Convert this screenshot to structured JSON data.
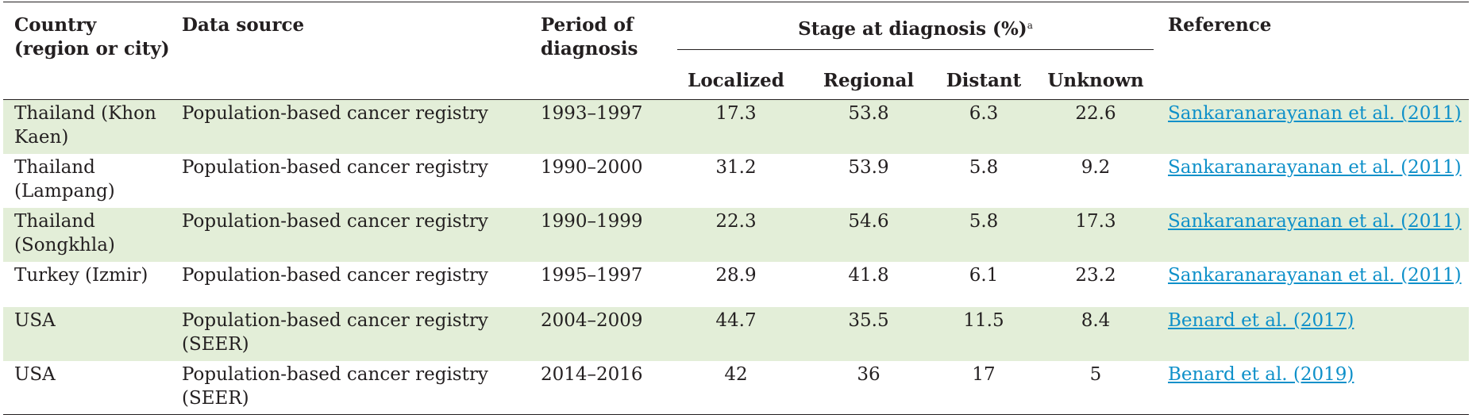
{
  "table": {
    "headers": {
      "country": "Country (region or city)",
      "source": "Data source",
      "period": "Period of diagnosis",
      "stage_group": "Stage at diagnosis (%)",
      "stage_group_note": "a",
      "localized": "Localized",
      "regional": "Regional",
      "distant": "Distant",
      "unknown": "Unknown",
      "reference": "Reference"
    },
    "rows": [
      {
        "country": "Thailand (Khon Kaen)",
        "source": "Population-based cancer registry",
        "period": "1993–1997",
        "localized": "17.3",
        "regional": "53.8",
        "distant": "6.3",
        "unknown": "22.6",
        "reference": "Sankaranarayanan et al. (2011)"
      },
      {
        "country": "Thailand (Lampang)",
        "source": "Population-based cancer registry",
        "period": "1990–2000",
        "localized": "31.2",
        "regional": "53.9",
        "distant": "5.8",
        "unknown": "9.2",
        "reference": "Sankaranarayanan et al. (2011)"
      },
      {
        "country": "Thailand (Songkhla)",
        "source": "Population-based cancer registry",
        "period": "1990–1999",
        "localized": "22.3",
        "regional": "54.6",
        "distant": "5.8",
        "unknown": "17.3",
        "reference": "Sankaranarayanan et al. (2011)"
      },
      {
        "country": "Turkey (Izmir)",
        "source": "Population-based cancer registry",
        "period": "1995–1997",
        "localized": "28.9",
        "regional": "41.8",
        "distant": "6.1",
        "unknown": "23.2",
        "reference": "Sankaranarayanan et al. (2011)"
      },
      {
        "country": "USA",
        "source": "Population-based cancer registry (SEER)",
        "period": "2004–2009",
        "localized": "44.7",
        "regional": "35.5",
        "distant": "11.5",
        "unknown": "8.4",
        "reference": "Benard et al. (2017)"
      },
      {
        "country": "USA",
        "source": "Population-based cancer registry (SEER)",
        "period": "2014–2016",
        "localized": "42",
        "regional": "36",
        "distant": "17",
        "unknown": "5",
        "reference": "Benard et al. (2019)"
      }
    ]
  },
  "colors": {
    "row_shade": "#e3eed8",
    "link": "#0e90c9",
    "rule": "#231f20"
  }
}
